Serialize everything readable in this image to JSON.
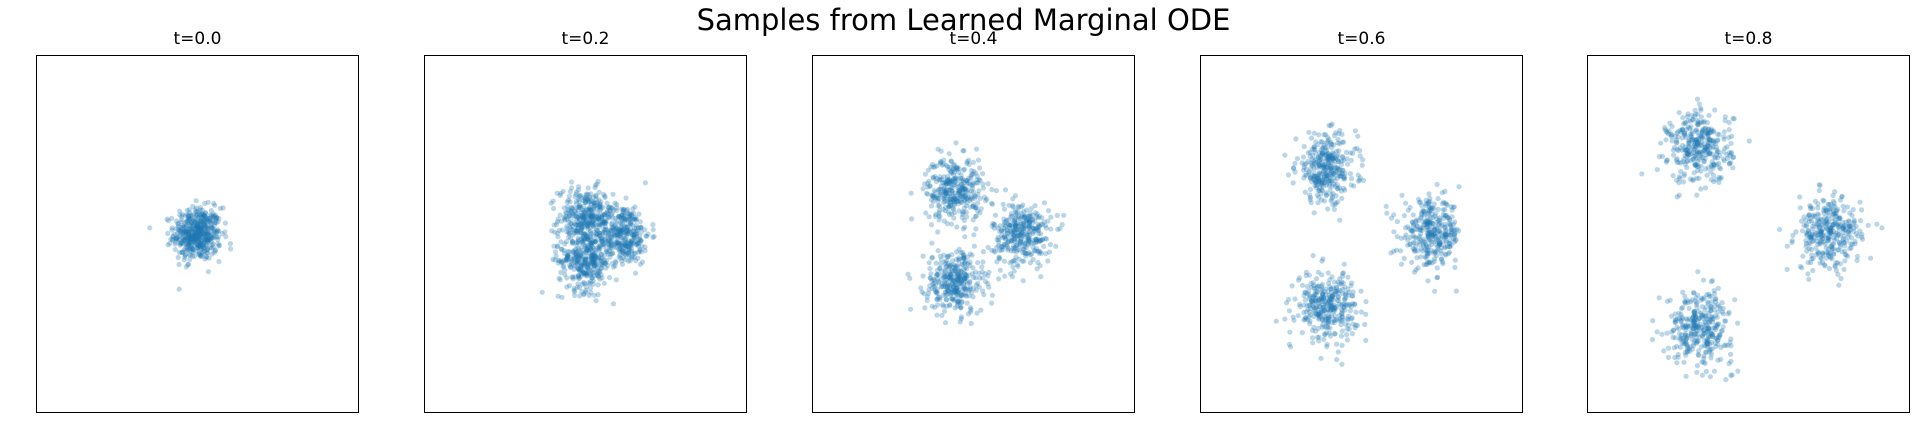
{
  "figure": {
    "title": "Samples from Learned Marginal ODE"
  },
  "colors": {
    "points": "#1f77b4"
  },
  "chart_data": [
    {
      "type": "scatter",
      "title": "t=0.0",
      "xlim": [
        -3,
        3
      ],
      "ylim": [
        -3,
        3
      ],
      "grid": false,
      "axes_ticks": false,
      "series": [
        {
          "clusters": [
            {
              "cx": 0.0,
              "cy": 0.0,
              "sd": 0.22,
              "n": 500
            }
          ]
        }
      ]
    },
    {
      "type": "scatter",
      "title": "t=0.2",
      "xlim": [
        -3,
        3
      ],
      "ylim": [
        -3,
        3
      ],
      "grid": false,
      "axes_ticks": false,
      "series": [
        {
          "clusters": [
            {
              "cx": 0.0,
              "cy": 0.27,
              "sd": 0.25,
              "n": 333
            },
            {
              "cx": 0.7,
              "cy": 0.0,
              "sd": 0.25,
              "n": 333
            },
            {
              "cx": 0.0,
              "cy": -0.45,
              "sd": 0.25,
              "n": 334
            }
          ]
        }
      ]
    },
    {
      "type": "scatter",
      "title": "t=0.4",
      "xlim": [
        -3,
        3
      ],
      "ylim": [
        -3,
        3
      ],
      "grid": false,
      "axes_ticks": false,
      "series": [
        {
          "clusters": [
            {
              "cx": -0.35,
              "cy": 0.75,
              "sd": 0.27,
              "n": 333
            },
            {
              "cx": 0.9,
              "cy": 0.0,
              "sd": 0.27,
              "n": 333
            },
            {
              "cx": -0.35,
              "cy": -0.8,
              "sd": 0.27,
              "n": 334
            }
          ]
        }
      ]
    },
    {
      "type": "scatter",
      "title": "t=0.6",
      "xlim": [
        -3,
        3
      ],
      "ylim": [
        -3,
        3
      ],
      "grid": false,
      "axes_ticks": false,
      "series": [
        {
          "clusters": [
            {
              "cx": -0.65,
              "cy": 1.1,
              "sd": 0.28,
              "n": 333
            },
            {
              "cx": 1.3,
              "cy": 0.0,
              "sd": 0.28,
              "n": 333
            },
            {
              "cx": -0.65,
              "cy": -1.2,
              "sd": 0.28,
              "n": 334
            }
          ]
        }
      ]
    },
    {
      "type": "scatter",
      "title": "t=0.8",
      "xlim": [
        -3,
        3
      ],
      "ylim": [
        -3,
        3
      ],
      "grid": false,
      "axes_ticks": false,
      "series": [
        {
          "clusters": [
            {
              "cx": -0.9,
              "cy": 1.45,
              "sd": 0.3,
              "n": 333
            },
            {
              "cx": 1.5,
              "cy": 0.0,
              "sd": 0.3,
              "n": 333
            },
            {
              "cx": -0.9,
              "cy": -1.55,
              "sd": 0.3,
              "n": 334
            }
          ]
        }
      ]
    }
  ]
}
